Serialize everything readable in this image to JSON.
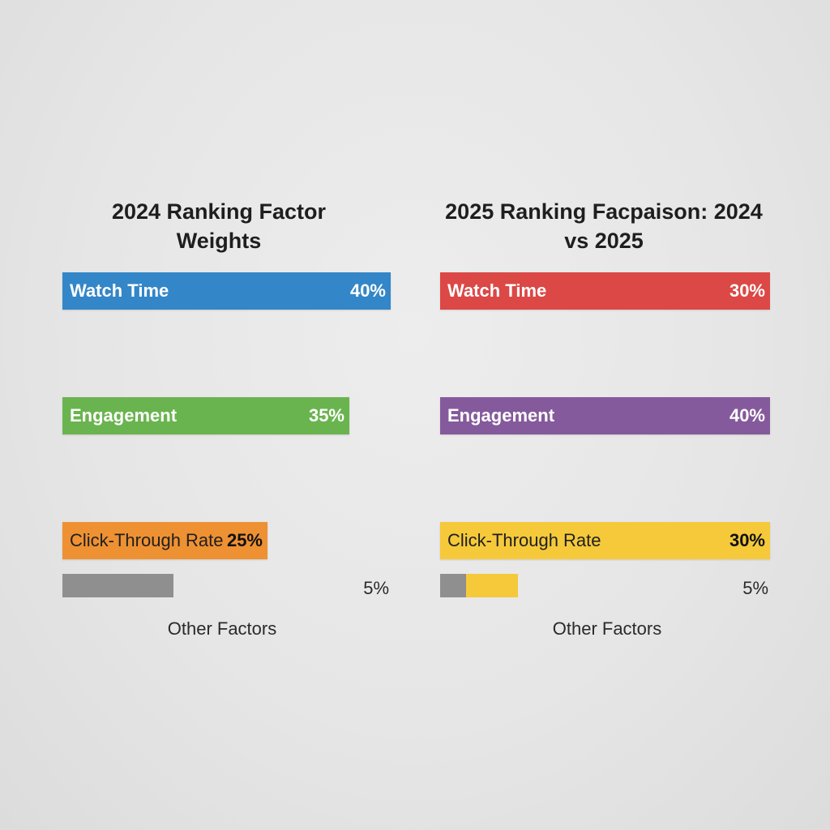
{
  "colors": {
    "background": "#e6e6e6",
    "watch_time_2024": "#3386c8",
    "engagement_2024": "#6ab44f",
    "ctr_2024": "#ee9133",
    "watch_time_2025": "#db4846",
    "engagement_2025": "#855a9c",
    "ctr_2025": "#f5c93a",
    "other_factors": "#8f8f8f"
  },
  "chart_data": [
    {
      "type": "bar",
      "title": "2024 Ranking Factor Weights",
      "categories": [
        "Watch Time",
        "Engagement",
        "Click-Through Rate",
        "Other Factors"
      ],
      "values": [
        40,
        35,
        25,
        5
      ],
      "value_labels": [
        "40%",
        "35%",
        "25%",
        "5%"
      ],
      "unit": "%",
      "xlim": [
        0,
        40
      ],
      "grid": false,
      "legend": "none"
    },
    {
      "type": "bar",
      "title": "2025 Ranking Facpaison: 2024 vs 2025",
      "categories": [
        "Watch Time",
        "Engagement",
        "Click-Through Rate",
        "Other Factors"
      ],
      "values": [
        30,
        40,
        30,
        5
      ],
      "value_labels": [
        "30%",
        "40%",
        "30%",
        "5%"
      ],
      "unit": "%",
      "xlim": [
        0,
        40
      ],
      "grid": false,
      "legend": "none"
    }
  ]
}
